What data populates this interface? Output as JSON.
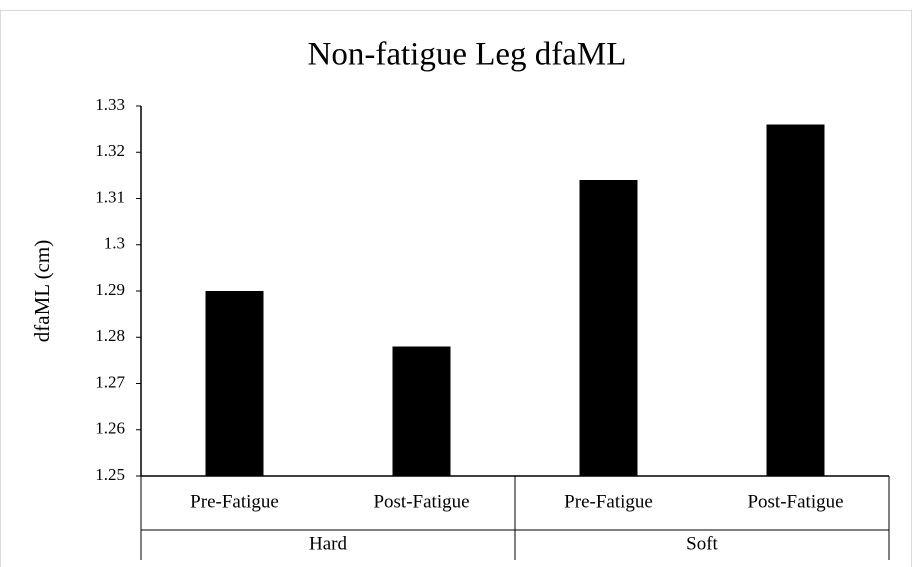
{
  "chart_data": {
    "type": "bar",
    "title": "Non-fatigue Leg dfaML",
    "ylabel": "dfaML (cm)",
    "groups": [
      {
        "name": "Hard",
        "categories": [
          "Pre-Fatigue",
          "Post-Fatigue"
        ]
      },
      {
        "name": "Soft",
        "categories": [
          "Pre-Fatigue",
          "Post-Fatigue"
        ]
      }
    ],
    "values": [
      1.29,
      1.278,
      1.314,
      1.326
    ],
    "color": "#000000",
    "ylim": [
      1.25,
      1.33
    ],
    "yticks": [
      1.25,
      1.26,
      1.27,
      1.28,
      1.29,
      1.3,
      1.31,
      1.32,
      1.33
    ],
    "grid": false
  }
}
